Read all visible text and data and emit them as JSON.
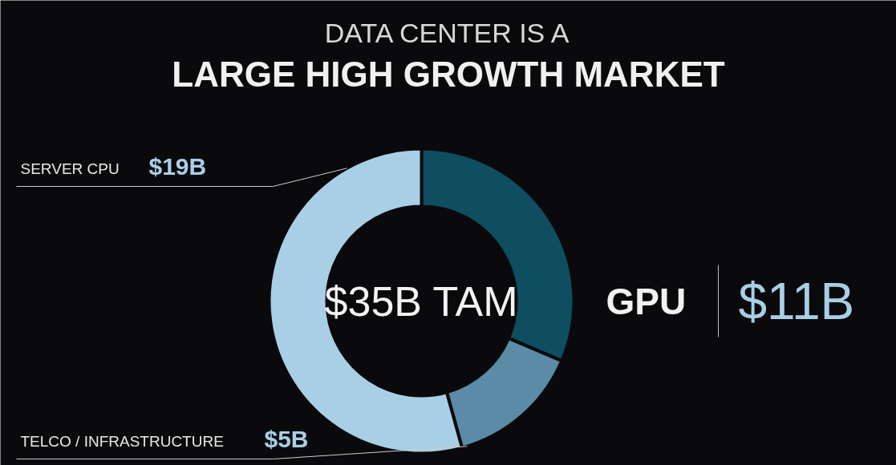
{
  "chart_data": {
    "type": "donut",
    "title": "DATA CENTER IS A",
    "subtitle": "LARGE HIGH GROWTH MARKET",
    "categories": [
      "GPU",
      "TELCO / INFRASTRUCTURE",
      "SERVER CPU"
    ],
    "values": [
      11,
      5,
      19
    ],
    "colors": [
      "#0f4d60",
      "#5b8ba6",
      "#a8cfe6"
    ],
    "value_labels": [
      "$11B",
      "$5B",
      "$19B"
    ],
    "annotations": [
      "$35B TAM"
    ]
  }
}
